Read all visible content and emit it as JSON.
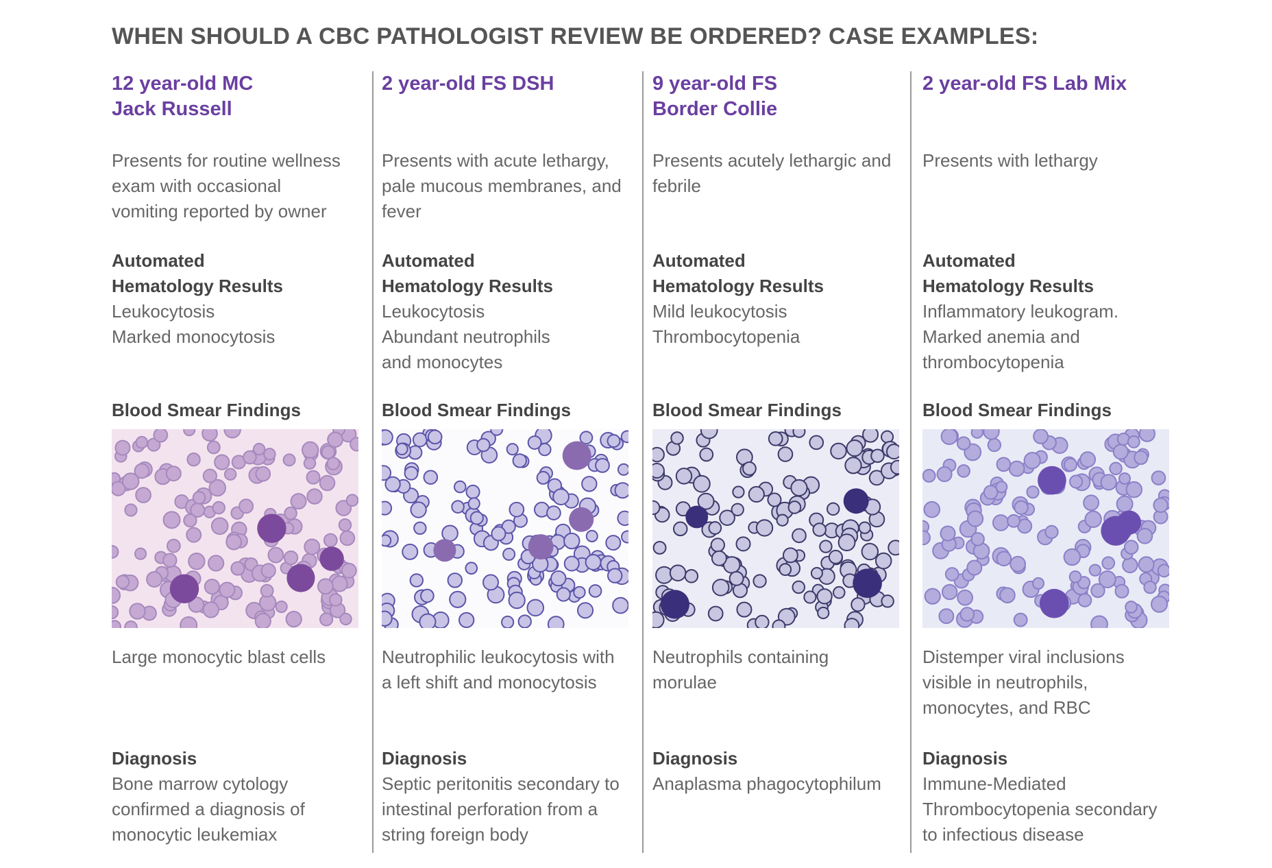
{
  "title": "WHEN SHOULD A CBC PATHOLOGIST REVIEW BE ORDERED? CASE EXAMPLES:",
  "cases": [
    {
      "heading": [
        "12 year-old MC",
        "Jack Russell"
      ],
      "description": [
        "Presents for routine wellness",
        "exam with occasional",
        "vomiting reported by owner"
      ],
      "results_label": [
        "Automated",
        "Hematology Results"
      ],
      "results": [
        "Leukocytosis",
        "Marked monocytosis"
      ],
      "smear_label": "Blood Smear Findings",
      "caption": [
        "Large monocytic blast cells"
      ],
      "diagnosis_label": "Diagnosis",
      "diagnosis": [
        "Bone marrow cytology",
        "confirmed a diagnosis of",
        "monocytic leukemiax"
      ]
    },
    {
      "heading": [
        "2 year-old FS DSH"
      ],
      "description": [
        "Presents with acute lethargy,",
        "pale mucous membranes, and",
        "fever"
      ],
      "results_label": [
        "Automated",
        "Hematology Results"
      ],
      "results": [
        "Leukocytosis",
        "Abundant neutrophils",
        "and monocytes"
      ],
      "smear_label": "Blood Smear Findings",
      "caption": [
        "Neutrophilic leukocytosis with",
        "a left shift and monocytosis"
      ],
      "diagnosis_label": "Diagnosis",
      "diagnosis": [
        "Septic peritonitis secondary to",
        "intestinal perforation from a",
        "string foreign body"
      ]
    },
    {
      "heading": [
        "9 year-old FS",
        "Border Collie"
      ],
      "description": [
        "Presents acutely lethargic and",
        "febrile"
      ],
      "results_label": [
        "Automated",
        "Hematology Results"
      ],
      "results": [
        "Mild leukocytosis",
        "Thrombocytopenia"
      ],
      "smear_label": "Blood Smear Findings",
      "caption": [
        "Neutrophils containing",
        "morulae"
      ],
      "diagnosis_label": "Diagnosis",
      "diagnosis": [
        "Anaplasma phagocytophilum"
      ]
    },
    {
      "heading": [
        "2 year-old FS Lab Mix"
      ],
      "description": [
        "Presents with lethargy"
      ],
      "results_label": [
        "Automated",
        "Hematology Results"
      ],
      "results": [
        "Inflammatory leukogram.",
        "Marked anemia and",
        "thrombocytopenia"
      ],
      "smear_label": "Blood Smear Findings",
      "caption": [
        "Distemper viral inclusions",
        "visible in neutrophils,",
        "monocytes, and RBC"
      ],
      "diagnosis_label": "Diagnosis",
      "diagnosis": [
        "Immune-Mediated",
        "Thrombocytopenia secondary",
        "to infectious disease"
      ]
    }
  ]
}
